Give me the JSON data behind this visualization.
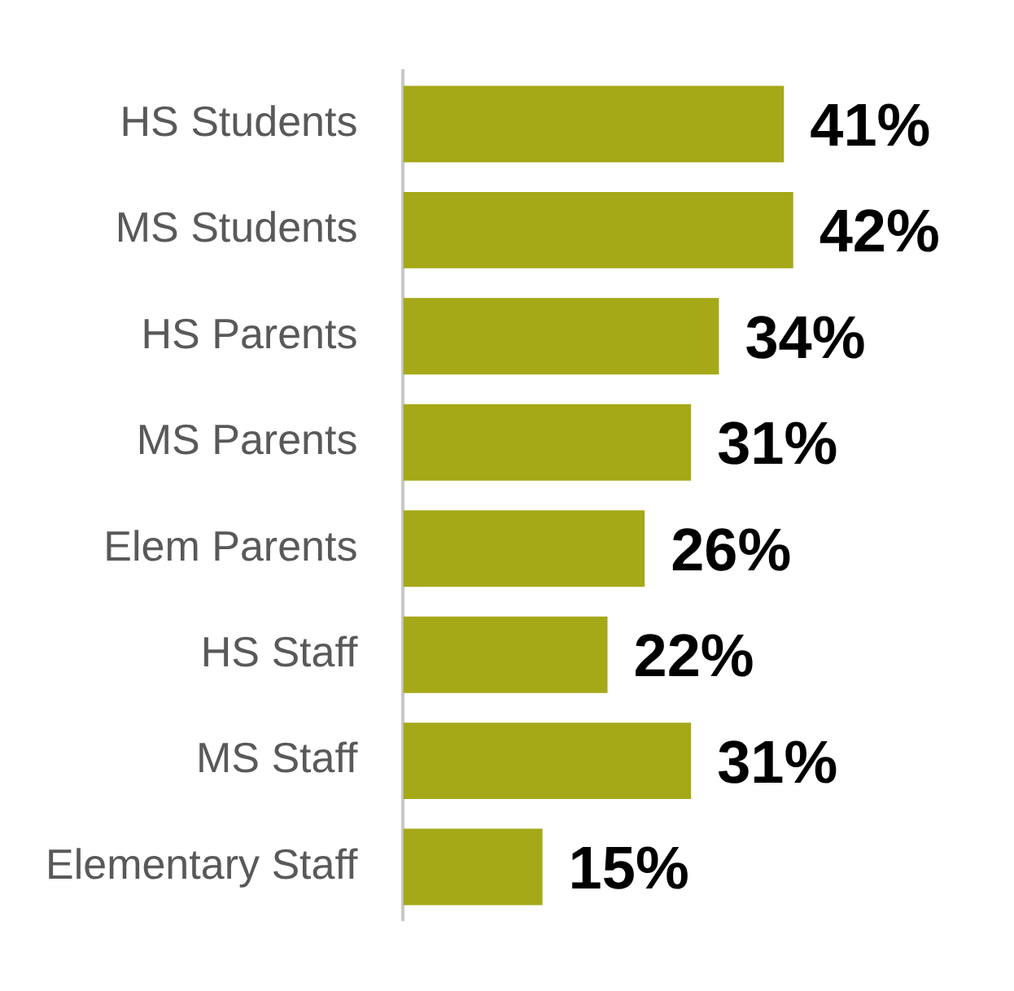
{
  "chart_data": {
    "type": "bar",
    "orientation": "horizontal",
    "categories": [
      "HS Students",
      "MS Students",
      "HS Parents",
      "MS Parents",
      "Elem Parents",
      "HS Staff",
      "MS Staff",
      "Elementary Staff"
    ],
    "values": [
      41,
      42,
      34,
      31,
      26,
      22,
      31,
      15
    ],
    "value_labels": [
      "41%",
      "42%",
      "34%",
      "31%",
      "26%",
      "22%",
      "31%",
      "15%"
    ],
    "color": "#a5a817",
    "grid": false,
    "legend": false,
    "tick_labels": "y"
  }
}
